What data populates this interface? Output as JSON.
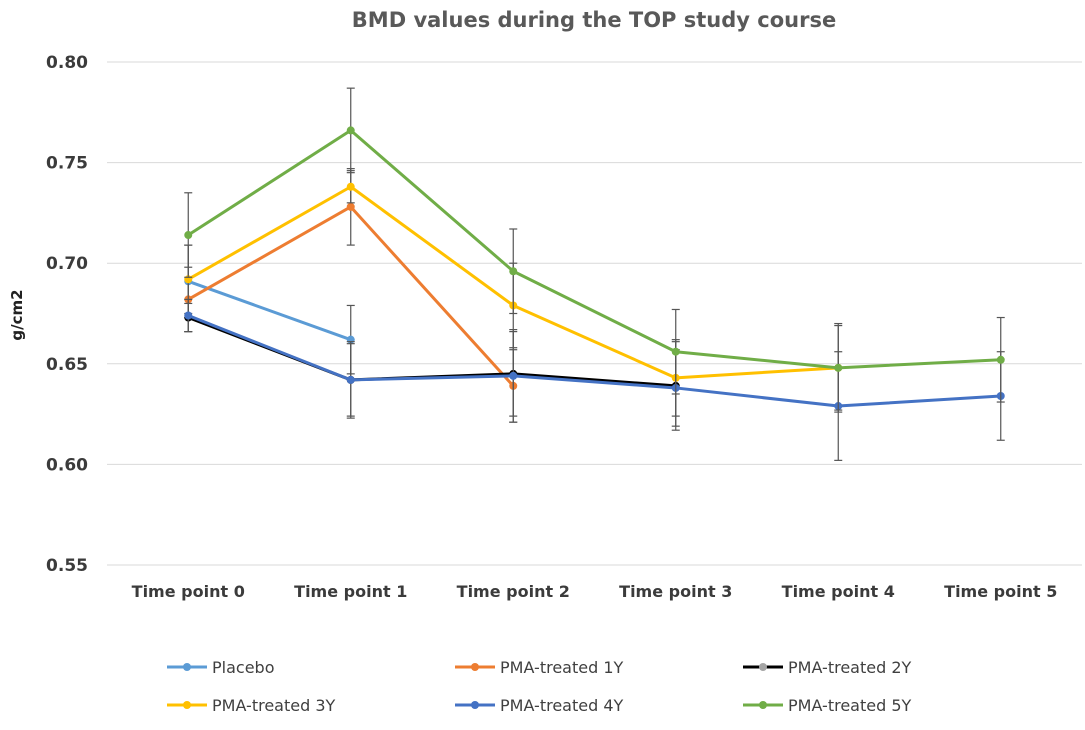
{
  "chart_data": {
    "type": "line",
    "title": "BMD values during the TOP study course",
    "xlabel": "",
    "ylabel": "g/cm2",
    "ylim": [
      0.55,
      0.8
    ],
    "yticks": [
      "0.80",
      "0.75",
      "0.70",
      "0.65",
      "0.60",
      "0.55"
    ],
    "ytick_values": [
      0.8,
      0.75,
      0.7,
      0.65,
      0.6,
      0.55
    ],
    "categories": [
      "Time point 0",
      "Time point 1",
      "Time point 2",
      "Time point 3",
      "Time point 4",
      "Time point 5"
    ],
    "grid": true,
    "legend_position": "bottom",
    "series": [
      {
        "name": "Placebo",
        "color": "#5b9bd5",
        "values": [
          0.691,
          0.662,
          null,
          null,
          null,
          null
        ],
        "errors": [
          0.018,
          0.017,
          null,
          null,
          null,
          null
        ]
      },
      {
        "name": "PMA-treated 1Y",
        "color": "#ed7d31",
        "values": [
          0.682,
          0.728,
          0.639,
          null,
          null,
          null
        ],
        "errors": [
          0.016,
          0.019,
          0.018,
          null,
          null,
          null
        ]
      },
      {
        "name": "PMA-treated 2Y",
        "color": "#000000",
        "values": [
          0.673,
          0.642,
          0.645,
          0.639,
          null,
          null
        ],
        "errors": [
          0.007,
          0.018,
          0.021,
          0.022,
          null,
          null
        ]
      },
      {
        "name": "PMA-treated 3Y",
        "color": "#ffc000",
        "values": [
          0.692,
          0.738,
          0.679,
          0.643,
          0.648,
          null
        ],
        "errors": [
          0.017,
          0.008,
          0.021,
          0.019,
          0.022,
          null
        ]
      },
      {
        "name": "PMA-treated 4Y",
        "color": "#4472c4",
        "values": [
          0.674,
          0.642,
          0.644,
          0.638,
          0.629,
          0.634
        ],
        "errors": [
          0.008,
          0.019,
          0.023,
          0.019,
          0.027,
          0.022
        ]
      },
      {
        "name": "PMA-treated 5Y",
        "color": "#70ad47",
        "values": [
          0.714,
          0.766,
          0.696,
          0.656,
          0.648,
          0.652
        ],
        "errors": [
          0.021,
          0.021,
          0.021,
          0.021,
          0.021,
          0.021
        ]
      }
    ]
  }
}
